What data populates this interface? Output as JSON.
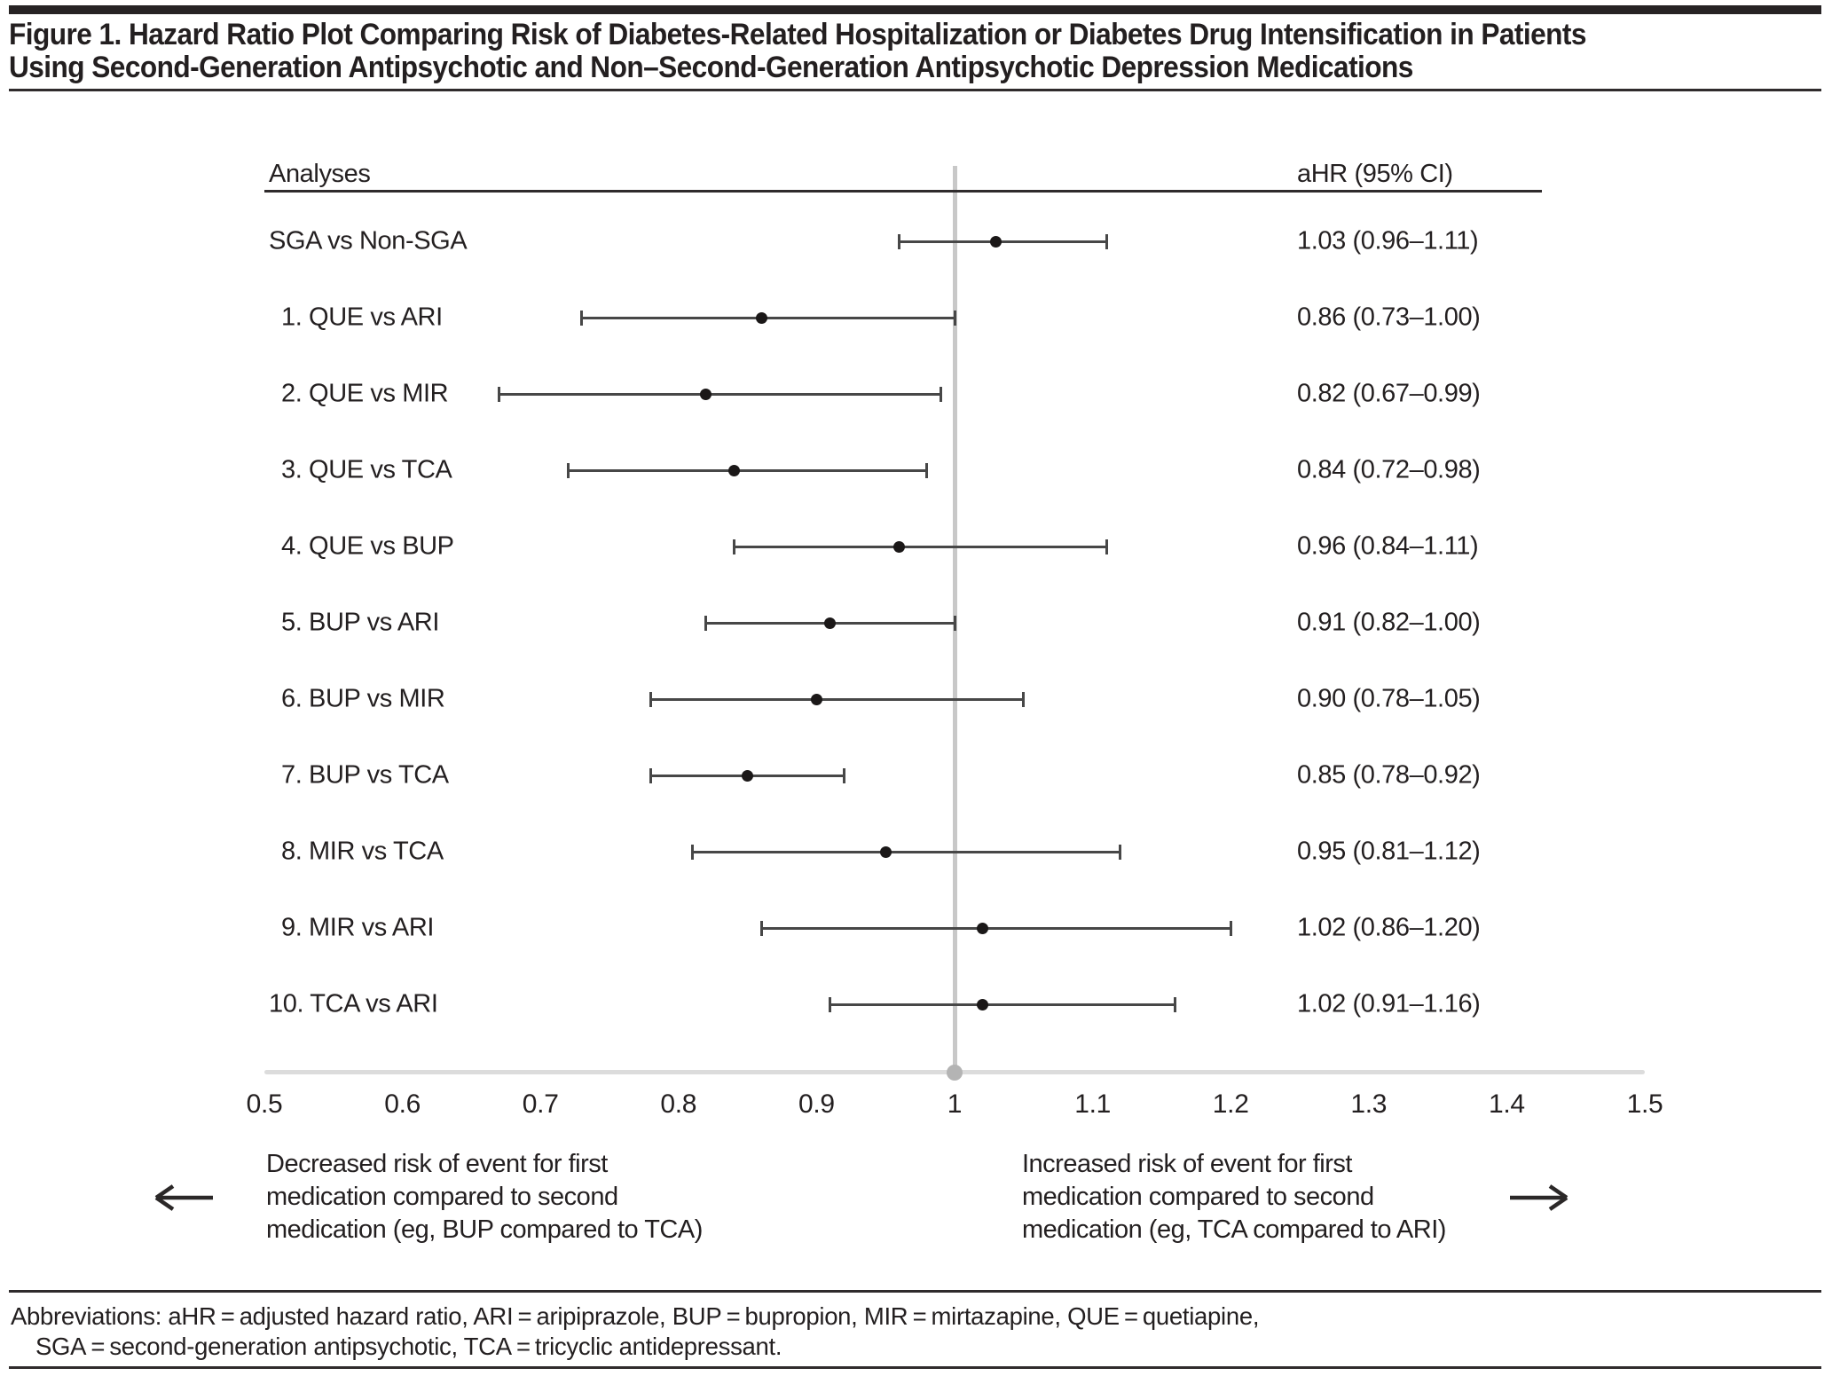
{
  "figure": {
    "title_line1": "Figure 1. Hazard Ratio Plot Comparing Risk of Diabetes-Related Hospitalization or Diabetes Drug Intensification in Patients",
    "title_line2": "Using Second-Generation Antipsychotic and Non–Second-Generation Antipsychotic Depression Medications"
  },
  "chart_data": {
    "type": "scatter",
    "variant": "forest-plot",
    "title": "Figure 1. Hazard Ratio Plot Comparing Risk of Diabetes-Related Hospitalization or Diabetes Drug Intensification in Patients Using Second-Generation Antipsychotic and Non–Second-Generation Antipsychotic Depression Medications",
    "columns": {
      "left": "Analyses",
      "right": "aHR (95% CI)"
    },
    "x_axis": {
      "min": 0.5,
      "max": 1.5,
      "ticks": [
        "0.5",
        "0.6",
        "0.7",
        "0.8",
        "0.9",
        "1",
        "1.1",
        "1.2",
        "1.3",
        "1.4",
        "1.5"
      ],
      "reference_line": 1
    },
    "grid": false,
    "legend_position": "none",
    "rows": [
      {
        "label": "SGA vs Non-SGA",
        "hr": 1.03,
        "lo": 0.96,
        "hi": 1.11,
        "ci_text": "1.03 (0.96–1.11)"
      },
      {
        "label": "1. QUE vs ARI",
        "hr": 0.86,
        "lo": 0.73,
        "hi": 1.0,
        "ci_text": "0.86 (0.73–1.00)"
      },
      {
        "label": "2. QUE vs MIR",
        "hr": 0.82,
        "lo": 0.67,
        "hi": 0.99,
        "ci_text": "0.82 (0.67–0.99)"
      },
      {
        "label": "3. QUE vs TCA",
        "hr": 0.84,
        "lo": 0.72,
        "hi": 0.98,
        "ci_text": "0.84 (0.72–0.98)"
      },
      {
        "label": "4. QUE vs BUP",
        "hr": 0.96,
        "lo": 0.84,
        "hi": 1.11,
        "ci_text": "0.96 (0.84–1.11)"
      },
      {
        "label": "5. BUP vs ARI",
        "hr": 0.91,
        "lo": 0.82,
        "hi": 1.0,
        "ci_text": "0.91 (0.82–1.00)"
      },
      {
        "label": "6. BUP vs MIR",
        "hr": 0.9,
        "lo": 0.78,
        "hi": 1.05,
        "ci_text": "0.90 (0.78–1.05)"
      },
      {
        "label": "7. BUP vs TCA",
        "hr": 0.85,
        "lo": 0.78,
        "hi": 0.92,
        "ci_text": "0.85 (0.78–0.92)"
      },
      {
        "label": "8. MIR vs TCA",
        "hr": 0.95,
        "lo": 0.81,
        "hi": 1.12,
        "ci_text": "0.95 (0.81–1.12)"
      },
      {
        "label": "9. MIR vs ARI",
        "hr": 1.02,
        "lo": 0.86,
        "hi": 1.2,
        "ci_text": "1.02 (0.86–1.20)"
      },
      {
        "label": "10. TCA vs ARI",
        "hr": 1.02,
        "lo": 0.91,
        "hi": 1.16,
        "ci_text": "1.02 (0.91–1.16)"
      }
    ]
  },
  "annotations": {
    "left": {
      "icon": "left-arrow",
      "lines": [
        "Decreased risk of event for first",
        "medication compared to second",
        "medication (eg, BUP compared to TCA)"
      ]
    },
    "right": {
      "icon": "right-arrow",
      "lines": [
        "Increased risk of event for first",
        "medication compared to second",
        "medication (eg, TCA compared to ARI)"
      ]
    }
  },
  "footnote": {
    "line1": "Abbreviations: aHR = adjusted hazard ratio, ARI = aripiprazole, BUP = bupropion, MIR = mirtazapine, QUE = quetiapine,",
    "line2": "SGA = second-generation antipsychotic, TCA = tricyclic antidepressant."
  },
  "colors": {
    "text": "#231f20",
    "rule": "#2f2b2c",
    "rule_heavy": "#272324",
    "ci_line": "#474747",
    "marker": "#1b1818",
    "reference_line": "#c8c8c8",
    "axis_line": "#dcdcdc",
    "axis_dot": "#b4b4b4"
  }
}
